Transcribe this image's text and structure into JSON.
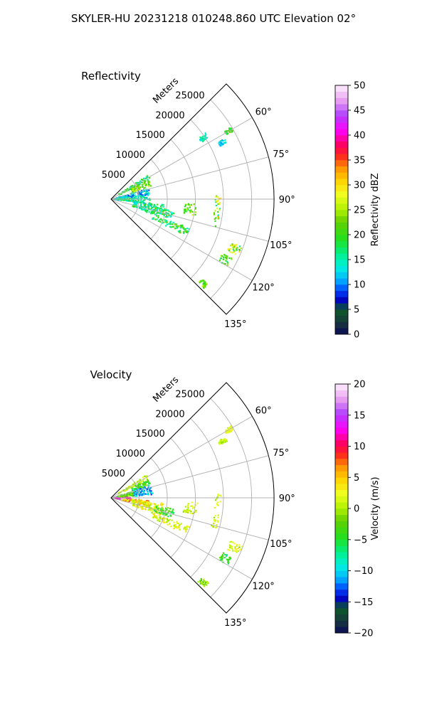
{
  "figure": {
    "suptitle": "SKYLER-HU  20231218  010248.860 UTC Elevation 02°"
  },
  "chart_data": [
    {
      "type": "polar-ppi",
      "title": "Reflectivity",
      "radial_axis_label": "Meters",
      "radial_ticks": [
        "5000",
        "10000",
        "15000",
        "20000",
        "25000"
      ],
      "radial_tick_values": [
        5000,
        10000,
        15000,
        20000,
        25000
      ],
      "rmax": 29000,
      "theta_ticks": [
        "60°",
        "75°",
        "90°",
        "105°",
        "120°",
        "135°"
      ],
      "theta_tick_values": [
        60,
        75,
        90,
        105,
        120,
        135
      ],
      "theta_range": [
        45,
        135
      ],
      "grid": true,
      "colorbar": {
        "label": "Reflectivity dBZ",
        "range": [
          0,
          50
        ],
        "ticks": [
          "0",
          "5",
          "10",
          "15",
          "20",
          "25",
          "30",
          "35",
          "40",
          "45",
          "50"
        ],
        "tick_values": [
          0,
          5,
          10,
          15,
          20,
          25,
          30,
          35,
          40,
          45,
          50
        ]
      },
      "features": [
        {
          "theta": [
            57,
            63
          ],
          "r": [
            1500,
            7800
          ],
          "value": 18,
          "vmix": 4
        },
        {
          "theta": [
            63,
            72
          ],
          "r": [
            4000,
            7500
          ],
          "value": 23,
          "vmix": 4
        },
        {
          "theta": [
            74,
            86
          ],
          "r": [
            1000,
            7000
          ],
          "value": 12,
          "vmix": 4
        },
        {
          "theta": [
            86,
            96
          ],
          "r": [
            500,
            7000
          ],
          "value": 16,
          "vmix": 5
        },
        {
          "theta": [
            96,
            110
          ],
          "r": [
            4000,
            9500
          ],
          "value": 16,
          "vmix": 5
        },
        {
          "theta": [
            100,
            108
          ],
          "r": [
            8000,
            11500
          ],
          "value": 18,
          "vmix": 5
        },
        {
          "theta": [
            110,
            116
          ],
          "r": [
            8000,
            15000
          ],
          "value": 19,
          "vmix": 5
        },
        {
          "theta": [
            93,
            101
          ],
          "r": [
            13000,
            15500
          ],
          "value": 22,
          "vmix": 6
        },
        {
          "theta": [
            88,
            106
          ],
          "r": [
            18500,
            19500
          ],
          "value": 24,
          "vmix": 9
        },
        {
          "theta": [
            110,
            114
          ],
          "r": [
            22500,
            25000
          ],
          "value": 24,
          "vmix": 8
        },
        {
          "theta": [
            116,
            120
          ],
          "r": [
            22000,
            24000
          ],
          "value": 20,
          "vmix": 4
        },
        {
          "theta": [
            131,
            134
          ],
          "r": [
            21500,
            23000
          ],
          "value": 22,
          "vmix": 4
        },
        {
          "theta": [
            62,
            64
          ],
          "r": [
            21500,
            23000
          ],
          "value": 13,
          "vmix": 3
        },
        {
          "theta": [
            55,
            58
          ],
          "r": [
            19000,
            20500
          ],
          "value": 15,
          "vmix": 3
        },
        {
          "theta": [
            59,
            61
          ],
          "r": [
            23500,
            25000
          ],
          "value": 20,
          "vmix": 3
        }
      ]
    },
    {
      "type": "polar-ppi",
      "title": "Velocity",
      "radial_axis_label": "Meters",
      "radial_ticks": [
        "5000",
        "10000",
        "15000",
        "20000",
        "25000"
      ],
      "radial_tick_values": [
        5000,
        10000,
        15000,
        20000,
        25000
      ],
      "rmax": 29000,
      "theta_ticks": [
        "60°",
        "75°",
        "90°",
        "105°",
        "120°",
        "135°"
      ],
      "theta_tick_values": [
        60,
        75,
        90,
        105,
        120,
        135
      ],
      "theta_range": [
        45,
        135
      ],
      "grid": true,
      "colorbar": {
        "label": "Velocity (m/s)",
        "range": [
          -20,
          20
        ],
        "ticks": [
          "−20",
          "−15",
          "−10",
          "−5",
          "0",
          "5",
          "10",
          "15",
          "20"
        ],
        "tick_values": [
          -20,
          -15,
          -10,
          -5,
          0,
          5,
          10,
          15,
          20
        ]
      },
      "features": [
        {
          "theta": [
            57,
            63
          ],
          "r": [
            1500,
            7800
          ],
          "value": 1,
          "vmix": 2
        },
        {
          "theta": [
            63,
            72
          ],
          "r": [
            4000,
            7500
          ],
          "value": -4,
          "vmix": 3
        },
        {
          "theta": [
            72,
            86
          ],
          "r": [
            4000,
            7500
          ],
          "value": -11,
          "vmix": 3
        },
        {
          "theta": [
            74,
            86
          ],
          "r": [
            1000,
            4000
          ],
          "value": -2,
          "vmix": 3
        },
        {
          "theta": [
            88,
            98
          ],
          "r": [
            300,
            3500
          ],
          "value": 14,
          "vmix": 4
        },
        {
          "theta": [
            94,
            104
          ],
          "r": [
            2000,
            7000
          ],
          "value": 5,
          "vmix": 4
        },
        {
          "theta": [
            96,
            110
          ],
          "r": [
            4000,
            9500
          ],
          "value": 2,
          "vmix": 3
        },
        {
          "theta": [
            100,
            108
          ],
          "r": [
            8000,
            11500
          ],
          "value": -4,
          "vmix": 3
        },
        {
          "theta": [
            110,
            116
          ],
          "r": [
            8000,
            15000
          ],
          "value": 2,
          "vmix": 3
        },
        {
          "theta": [
            93,
            101
          ],
          "r": [
            13000,
            15500
          ],
          "value": 1,
          "vmix": 2
        },
        {
          "theta": [
            88,
            106
          ],
          "r": [
            18500,
            19500
          ],
          "value": 1,
          "vmix": 2
        },
        {
          "theta": [
            110,
            114
          ],
          "r": [
            22500,
            25000
          ],
          "value": 1,
          "vmix": 3
        },
        {
          "theta": [
            116,
            120
          ],
          "r": [
            22000,
            24000
          ],
          "value": -4,
          "vmix": 3
        },
        {
          "theta": [
            131,
            134
          ],
          "r": [
            21500,
            23000
          ],
          "value": -1,
          "vmix": 2
        },
        {
          "theta": [
            62,
            64
          ],
          "r": [
            21500,
            23000
          ],
          "value": 1,
          "vmix": 2
        },
        {
          "theta": [
            59,
            61
          ],
          "r": [
            23500,
            25000
          ],
          "value": 2,
          "vmix": 2
        }
      ]
    }
  ]
}
